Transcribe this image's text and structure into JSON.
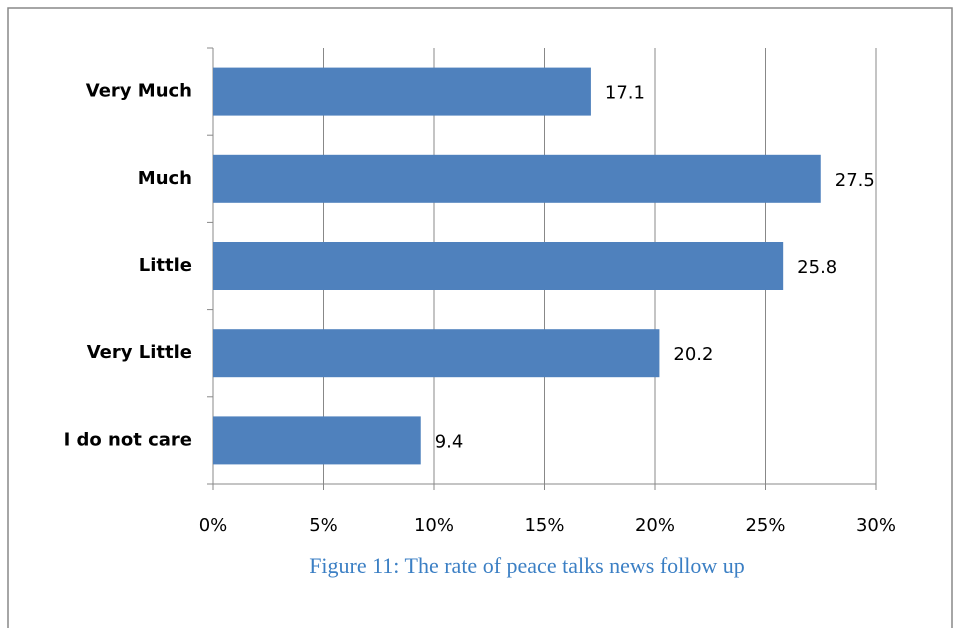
{
  "chart_data": {
    "type": "hbar",
    "caption": "Figure 11: The rate of peace talks news follow up",
    "categories": [
      "Very Much",
      "Much",
      "Little",
      "Very Little",
      "I do not care"
    ],
    "values": [
      17.1,
      27.5,
      25.8,
      20.2,
      9.4
    ],
    "color": "#4f81bd",
    "xlim": [
      0,
      30
    ],
    "xticks": [
      {
        "value": 0,
        "label": "0%"
      },
      {
        "value": 5,
        "label": "5%"
      },
      {
        "value": 10,
        "label": "10%"
      },
      {
        "value": 15,
        "label": "15%"
      },
      {
        "value": 20,
        "label": "20%"
      },
      {
        "value": 25,
        "label": "25%"
      },
      {
        "value": 30,
        "label": "30%"
      }
    ],
    "grid": true
  }
}
